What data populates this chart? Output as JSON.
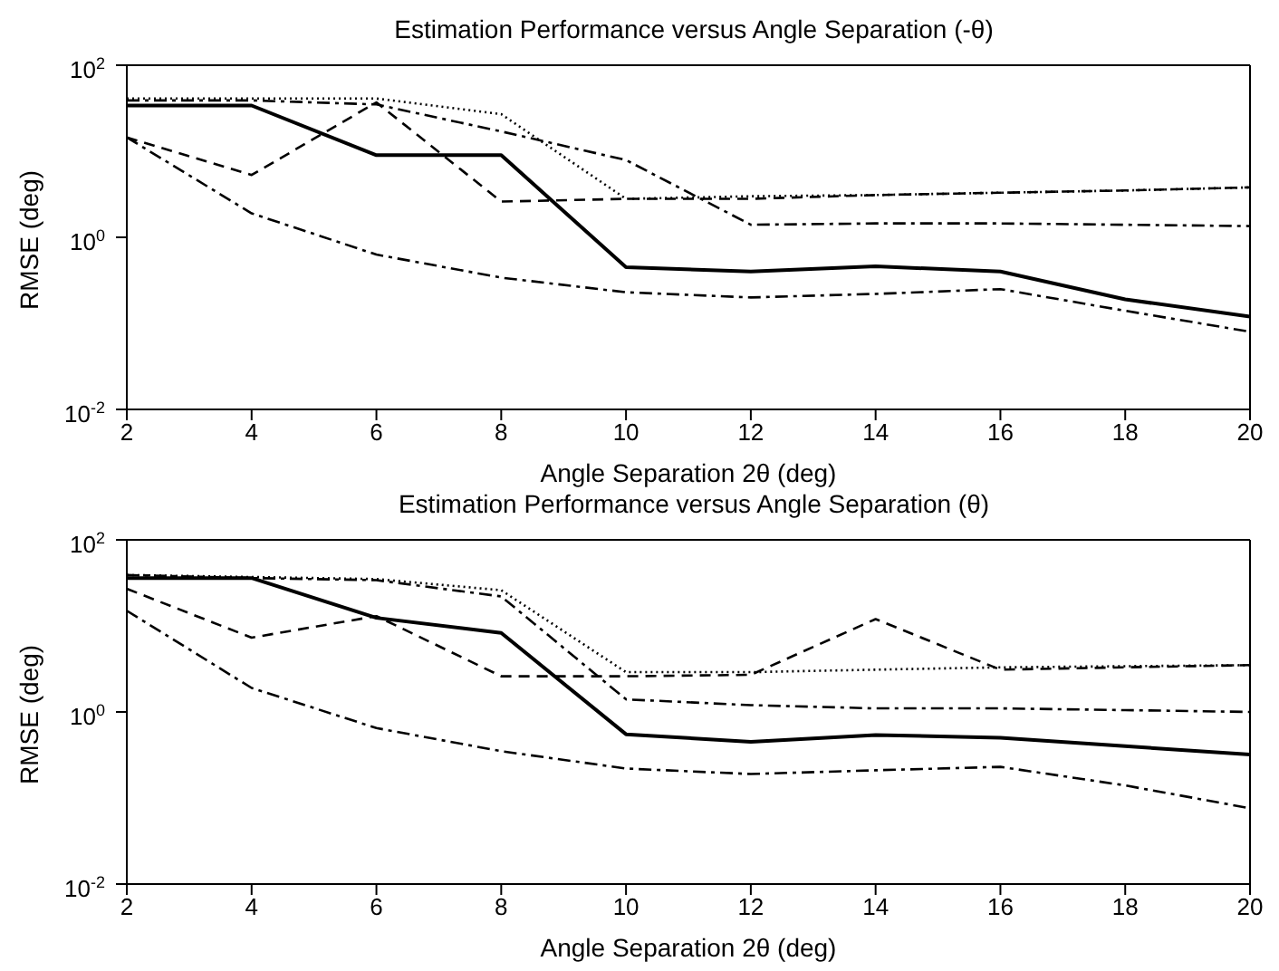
{
  "chart_data": [
    {
      "type": "line",
      "title": "Estimation Performance versus Angle Separation (-θ)",
      "xlabel": "Angle Separation 2θ (deg)",
      "ylabel": "RMSE (deg)",
      "x": [
        2,
        4,
        6,
        8,
        10,
        12,
        14,
        16,
        18,
        20
      ],
      "log": "y",
      "marker": "none",
      "xlim": [
        2,
        20
      ],
      "xticks": [
        2,
        4,
        6,
        8,
        10,
        12,
        14,
        16,
        18,
        20
      ],
      "ylim": [
        0.01,
        100
      ],
      "yticks": [
        {
          "value": 0.01,
          "label": "10$^{-2}$"
        },
        {
          "value": 1,
          "label": "10$^{0}$"
        },
        {
          "value": 100,
          "label": "10$^{2}$"
        }
      ],
      "series": [
        {
          "color": "#000000",
          "line_style": "solid",
          "values": [
            34,
            34,
            9,
            9,
            0.45,
            0.4,
            0.46,
            0.4,
            0.19,
            0.12
          ]
        },
        {
          "color": "#000000",
          "line_style": "dashed",
          "values": [
            14.5,
            5.3,
            37,
            2.6,
            2.8,
            2.8,
            3.1,
            3.3,
            3.5,
            3.8
          ]
        },
        {
          "color": "#000000",
          "line_style": "dotted",
          "values": [
            41,
            41,
            41,
            27,
            2.8,
            3,
            3.1,
            3.3,
            3.5,
            3.8
          ]
        },
        {
          "color": "#000000",
          "line_style": "dashdot",
          "values": [
            39,
            39,
            35,
            17,
            7.9,
            1.4,
            1.45,
            1.45,
            1.4,
            1.35
          ]
        },
        {
          "color": "#000000",
          "line_style": "dashdot",
          "values": [
            14.5,
            1.9,
            0.63,
            0.34,
            0.23,
            0.2,
            0.22,
            0.25,
            0.14,
            0.08
          ]
        }
      ]
    },
    {
      "type": "line",
      "title": "Estimation Performance versus Angle Separation (θ)",
      "xlabel": "Angle Separation 2θ (deg)",
      "ylabel": "RMSE (deg)",
      "x": [
        2,
        4,
        6,
        8,
        10,
        12,
        14,
        16,
        18,
        20
      ],
      "log": "y",
      "marker": "none",
      "xlim": [
        2,
        20
      ],
      "xticks": [
        2,
        4,
        6,
        8,
        10,
        12,
        14,
        16,
        18,
        20
      ],
      "ylim": [
        0.01,
        100
      ],
      "yticks": [
        {
          "value": 0.01,
          "label": "10$^{-2}$"
        },
        {
          "value": 1,
          "label": "10$^{0}$"
        },
        {
          "value": 100,
          "label": "10$^{2}$"
        }
      ],
      "series": [
        {
          "color": "#000000",
          "line_style": "solid",
          "values": [
            36,
            36,
            12.4,
            8.3,
            0.55,
            0.45,
            0.54,
            0.5,
            0.4,
            0.32
          ]
        },
        {
          "color": "#000000",
          "line_style": "dashed",
          "values": [
            27,
            7.3,
            13,
            2.6,
            2.6,
            2.7,
            12,
            3.1,
            3.3,
            3.5
          ]
        },
        {
          "color": "#000000",
          "line_style": "dotted",
          "values": [
            39,
            37,
            35,
            26,
            2.9,
            2.9,
            3.1,
            3.3,
            3.4,
            3.5
          ]
        },
        {
          "color": "#000000",
          "line_style": "dashdot",
          "values": [
            39,
            36,
            34,
            22,
            1.4,
            1.2,
            1.1,
            1.1,
            1.05,
            1
          ]
        },
        {
          "color": "#000000",
          "line_style": "dashdot",
          "values": [
            15,
            1.9,
            0.65,
            0.35,
            0.22,
            0.19,
            0.21,
            0.23,
            0.14,
            0.076
          ]
        }
      ]
    }
  ]
}
